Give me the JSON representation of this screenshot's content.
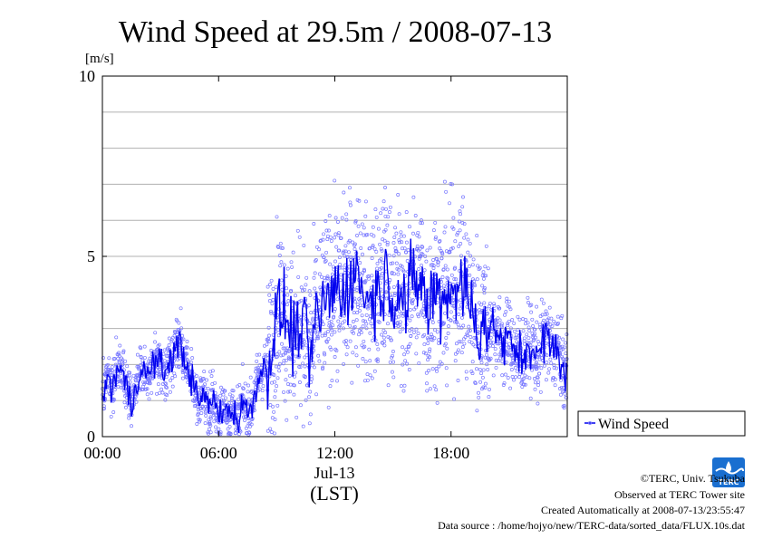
{
  "chart_data": {
    "type": "scatter",
    "title": "Wind Speed at 29.5m / 2008-07-13",
    "ylabel": "[m/s]",
    "xlabel": "(LST)",
    "date_label": "Jul-13",
    "x_unit": "hour",
    "xlim": [
      0,
      24
    ],
    "ylim": [
      0,
      10
    ],
    "x_ticks": [
      {
        "value": 0,
        "label": "00:00"
      },
      {
        "value": 6,
        "label": "06:00"
      },
      {
        "value": 12,
        "label": "12:00"
      },
      {
        "value": 18,
        "label": "18:00"
      }
    ],
    "y_ticks": [
      {
        "value": 0,
        "label": "0"
      },
      {
        "value": 5,
        "label": "5"
      },
      {
        "value": 10,
        "label": "10"
      }
    ],
    "y_grid": [
      1,
      2,
      3,
      4,
      5,
      6,
      7,
      8,
      9
    ],
    "legend": {
      "position": "right",
      "entries": [
        "Wind Speed"
      ]
    },
    "series": [
      {
        "name": "Wind Speed",
        "color": "#0000ee",
        "scatter_color": "#7777ff",
        "x": [
          0,
          0.25,
          0.5,
          0.75,
          1,
          1.25,
          1.5,
          1.75,
          2,
          2.25,
          2.5,
          2.75,
          3,
          3.25,
          3.5,
          3.75,
          4,
          4.25,
          4.5,
          4.75,
          5,
          5.25,
          5.5,
          5.75,
          6,
          6.25,
          6.5,
          6.75,
          7,
          7.25,
          7.5,
          7.75,
          8,
          8.25,
          8.5,
          8.75,
          9,
          9.25,
          9.5,
          9.75,
          10,
          10.25,
          10.5,
          10.75,
          11,
          11.25,
          11.5,
          11.75,
          12,
          12.25,
          12.5,
          12.75,
          13,
          13.25,
          13.5,
          13.75,
          14,
          14.25,
          14.5,
          14.75,
          15,
          15.25,
          15.5,
          15.75,
          16,
          16.25,
          16.5,
          16.75,
          17,
          17.25,
          17.5,
          17.75,
          18,
          18.25,
          18.5,
          18.75,
          19,
          19.25,
          19.5,
          19.75,
          20,
          20.25,
          20.5,
          20.75,
          21,
          21.25,
          21.5,
          21.75,
          22,
          22.25,
          22.5,
          22.75,
          23,
          23.25,
          23.5,
          23.75
        ],
        "values": [
          1.1,
          1.6,
          1.3,
          1.9,
          1.8,
          1.4,
          0.8,
          1.5,
          1.9,
          1.7,
          1.8,
          2.2,
          2.0,
          1.7,
          2.2,
          2.4,
          2.6,
          2.1,
          1.8,
          1.3,
          0.9,
          1.2,
          0.8,
          1.1,
          0.5,
          0.9,
          0.6,
          0.8,
          0.4,
          1.0,
          0.6,
          0.9,
          1.6,
          1.8,
          2.0,
          2.5,
          3.3,
          3.6,
          3.2,
          2.9,
          2.7,
          3.4,
          2.6,
          2.1,
          3.1,
          3.5,
          3.6,
          3.9,
          4.2,
          3.9,
          4.1,
          4.4,
          4.3,
          4.6,
          4.0,
          3.6,
          4.1,
          3.8,
          4.4,
          4.5,
          3.7,
          4.3,
          3.9,
          3.5,
          4.4,
          4.0,
          4.6,
          3.3,
          3.8,
          4.1,
          3.7,
          4.0,
          4.2,
          4.1,
          4.4,
          4.0,
          3.6,
          3.2,
          3.0,
          3.3,
          2.9,
          3.1,
          2.7,
          2.5,
          2.7,
          2.4,
          2.3,
          2.2,
          2.6,
          2.4,
          2.1,
          2.7,
          2.8,
          2.3,
          2.6,
          1.8
        ]
      }
    ]
  },
  "credits": [
    "©TERC, Univ. Tsukuba",
    "Observed at TERC Tower site",
    "Created Automatically at 2008-07-13/23:55:47",
    "Data source : /home/hojyo/new/TERC-data/sorted_data/FLUX.10s.dat"
  ],
  "logo": {
    "text": "TERC",
    "color": "#1a6fd0"
  }
}
